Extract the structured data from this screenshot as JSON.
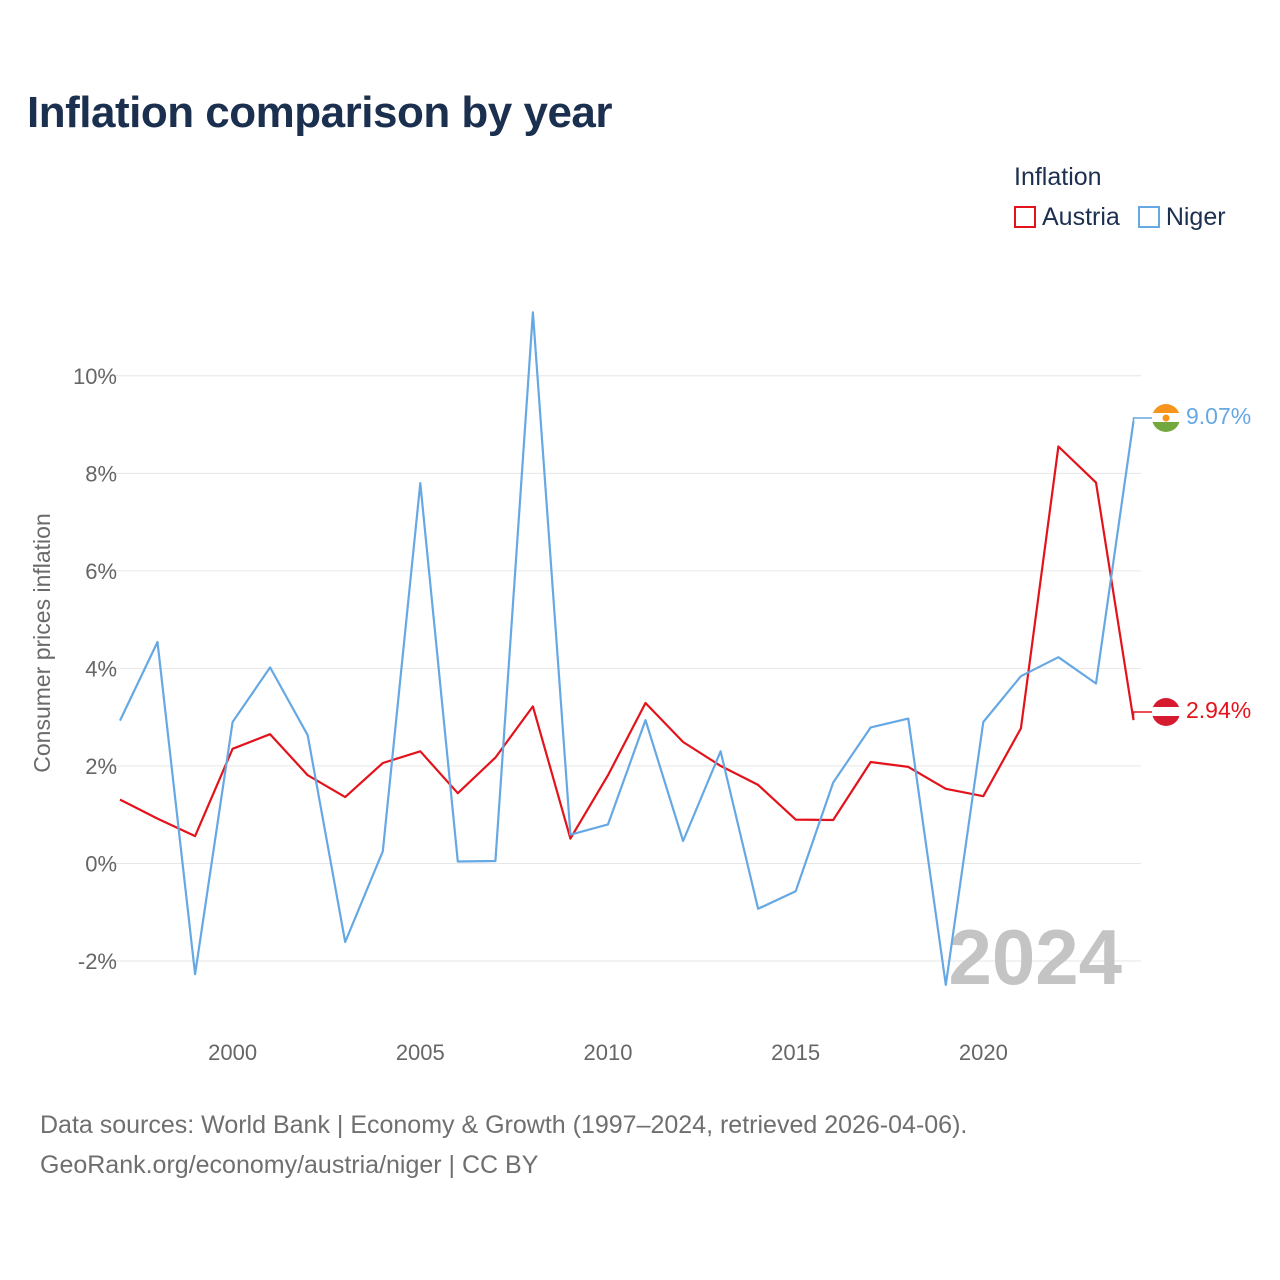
{
  "title": "Inflation comparison by year",
  "legend": {
    "title": "Inflation",
    "items": [
      {
        "label": "Austria",
        "color": "#e3131b"
      },
      {
        "label": "Niger",
        "color": "#66a8e4"
      }
    ]
  },
  "footer": {
    "line1": "Data sources: World Bank | Economy & Growth (1997–2024, retrieved 2026-04-06).",
    "line2": "GeoRank.org/economy/austria/niger | CC BY"
  },
  "chart_data": {
    "type": "line",
    "title": "Inflation comparison by year",
    "xlabel": "",
    "ylabel": "Consumer prices inflation",
    "x": [
      1997,
      1998,
      1999,
      2000,
      2001,
      2002,
      2003,
      2004,
      2005,
      2006,
      2007,
      2008,
      2009,
      2010,
      2011,
      2012,
      2013,
      2014,
      2015,
      2016,
      2017,
      2018,
      2019,
      2020,
      2021,
      2022,
      2023,
      2024
    ],
    "xlim": [
      1997,
      2024.2
    ],
    "ylim": [
      -2.8,
      11.8
    ],
    "x_ticks": [
      2000,
      2005,
      2010,
      2015,
      2020
    ],
    "y_ticks": [
      -2,
      0,
      2,
      4,
      6,
      8,
      10
    ],
    "y_tick_labels": [
      "-2%",
      "0%",
      "2%",
      "4%",
      "6%",
      "8%",
      "10%"
    ],
    "grid": true,
    "current_year_label": "2024",
    "series": [
      {
        "name": "Austria",
        "color": "#e3131b",
        "flag": "austria-flag",
        "end_label": "2.94%",
        "values": [
          1.31,
          0.92,
          0.56,
          2.35,
          2.65,
          1.81,
          1.36,
          2.06,
          2.3,
          1.44,
          2.17,
          3.22,
          0.51,
          1.81,
          3.29,
          2.49,
          2.0,
          1.61,
          0.9,
          0.89,
          2.08,
          1.98,
          1.53,
          1.38,
          2.77,
          8.55,
          7.81,
          2.94
        ]
      },
      {
        "name": "Niger",
        "color": "#66a8e4",
        "flag": "niger-flag",
        "end_label": "9.07%",
        "values": [
          2.93,
          4.54,
          -2.27,
          2.9,
          4.02,
          2.63,
          -1.61,
          0.25,
          7.8,
          0.04,
          0.05,
          11.3,
          0.59,
          0.8,
          2.94,
          0.46,
          2.3,
          -0.93,
          -0.57,
          1.66,
          2.79,
          2.97,
          -2.49,
          2.9,
          3.84,
          4.23,
          3.69,
          9.07
        ]
      }
    ]
  }
}
